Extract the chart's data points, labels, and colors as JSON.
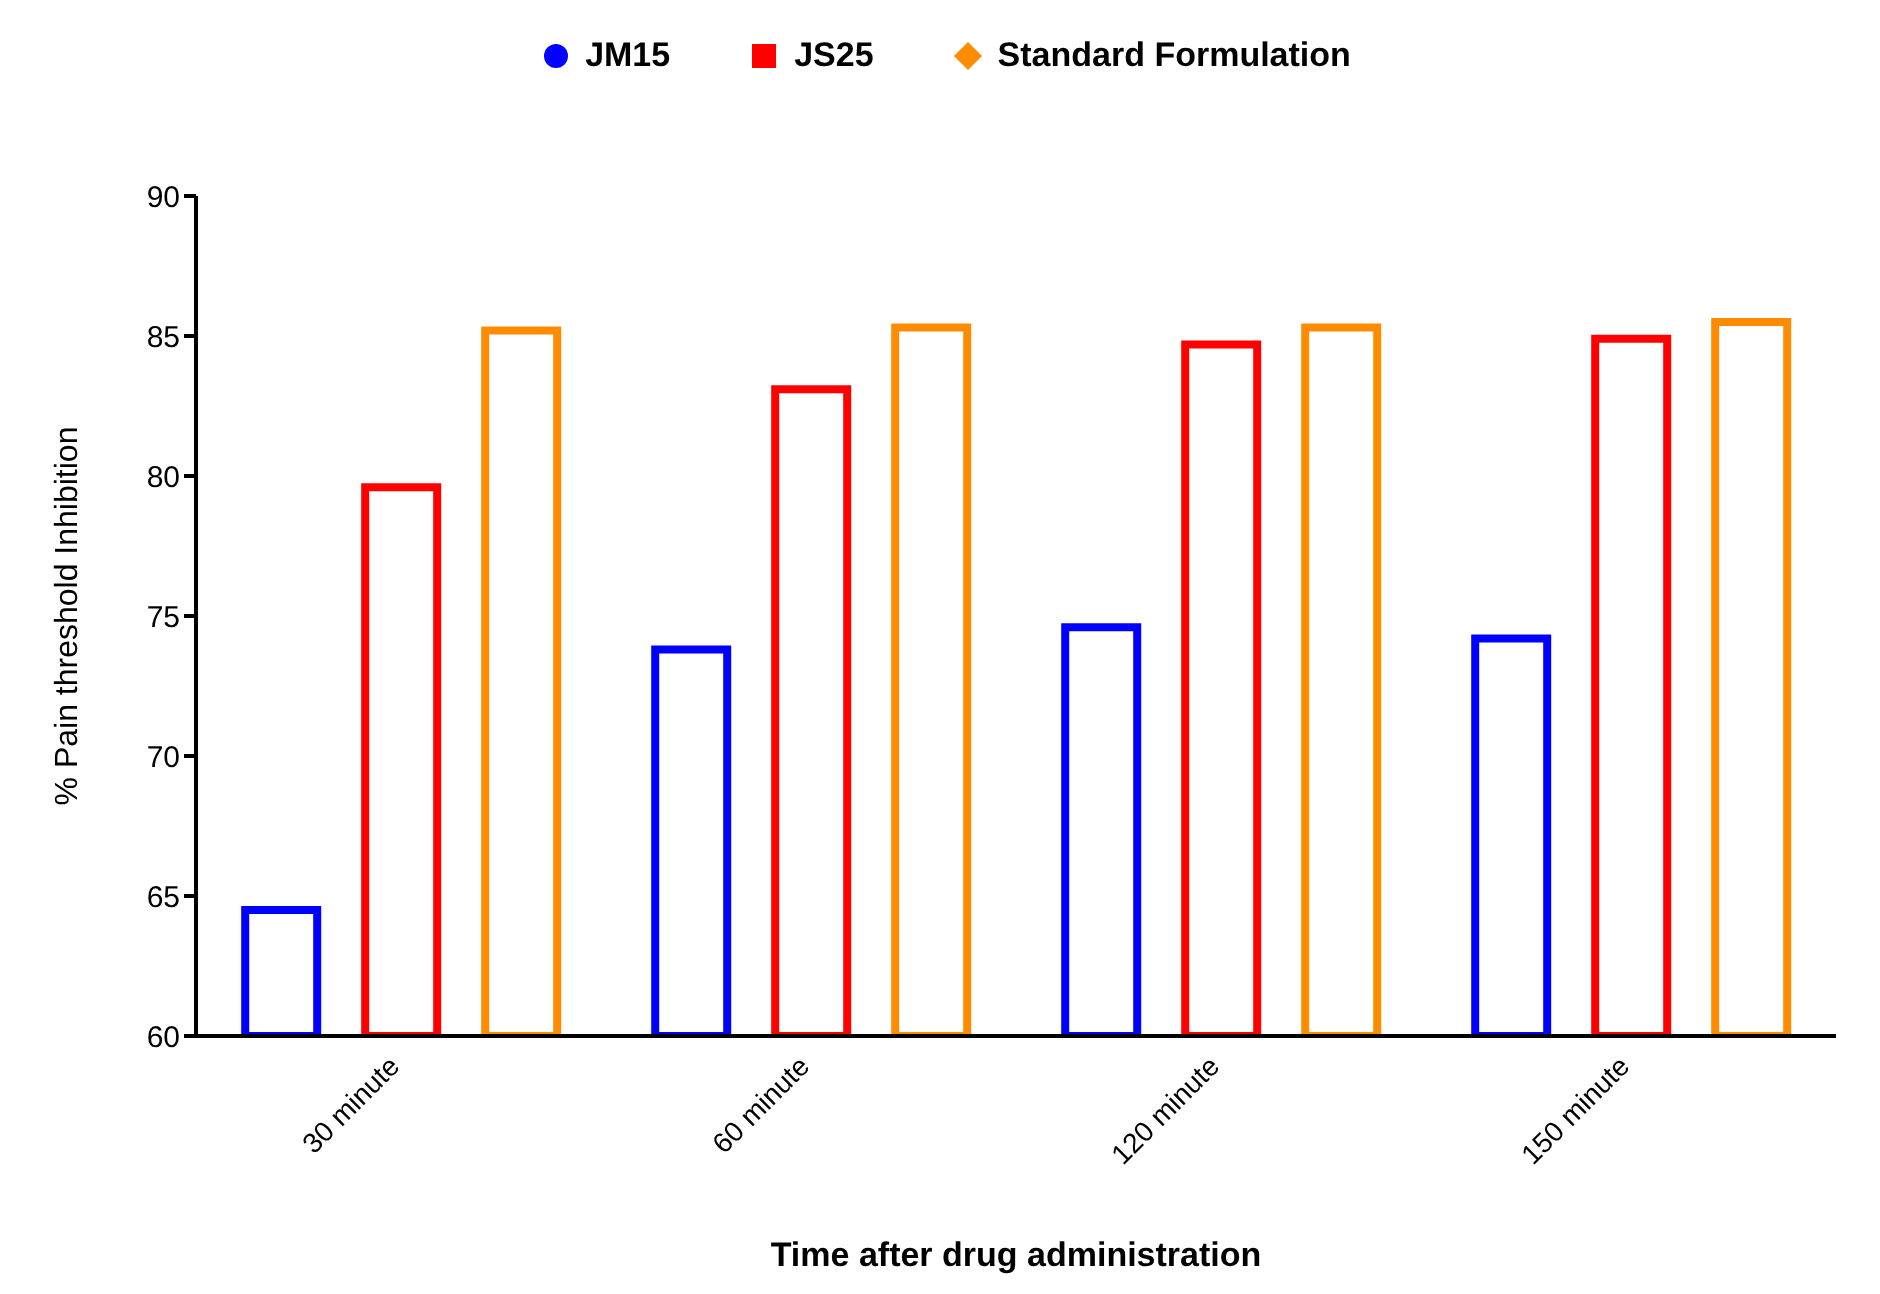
{
  "chart_data": {
    "type": "bar",
    "xlabel": "Time after drug administration",
    "ylabel": "% Pain threshold Inhibition",
    "categories": [
      "30 minute",
      "60 minute",
      "120 minute",
      "150 minute"
    ],
    "series": [
      {
        "name": "JM15",
        "color": "#0000ff",
        "marker": "circle",
        "values": [
          64.5,
          73.8,
          74.6,
          74.2
        ]
      },
      {
        "name": "JS25",
        "color": "#ff0000",
        "marker": "square",
        "values": [
          79.6,
          83.1,
          84.7,
          84.9
        ]
      },
      {
        "name": "Standard Formulation",
        "color": "#ff8c00",
        "marker": "diamond",
        "values": [
          85.2,
          85.3,
          85.3,
          85.5
        ]
      }
    ],
    "ylim": [
      60,
      90
    ],
    "yticks": [
      60,
      65,
      70,
      75,
      80,
      85,
      90
    ],
    "grid": false,
    "legend": "top"
  }
}
